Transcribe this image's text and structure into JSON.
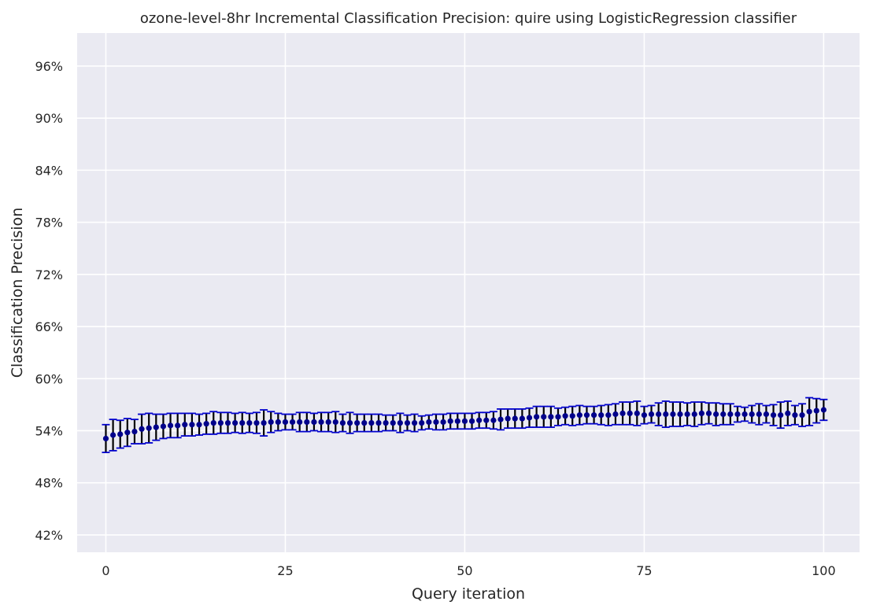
{
  "chart_data": {
    "type": "scatter",
    "title": "ozone-level-8hr Incremental Classification Precision: quire using LogisticRegression classifier",
    "xlabel": "Query iteration",
    "ylabel": "Classification Precision",
    "xlim": [
      -4,
      105
    ],
    "ylim": [
      40.0,
      99.8
    ],
    "xticks": [
      0,
      25,
      50,
      75,
      100
    ],
    "xtick_labels": [
      "0",
      "25",
      "50",
      "75",
      "100"
    ],
    "yticks": [
      42,
      48,
      54,
      60,
      66,
      72,
      78,
      84,
      90,
      96
    ],
    "ytick_labels": [
      "42%",
      "48%",
      "54%",
      "60%",
      "66%",
      "72%",
      "78%",
      "84%",
      "90%",
      "96%"
    ],
    "grid": true,
    "background": "#eaeaf2",
    "grid_color": "#ffffff",
    "point_color": "#00008b",
    "errorbar_color": "#000000",
    "cap_color": "#0000cd",
    "series": [
      {
        "x": [
          0,
          1,
          2,
          3,
          4,
          5,
          6,
          7,
          8,
          9,
          10,
          11,
          12,
          13,
          14,
          15,
          16,
          17,
          18,
          19,
          20,
          21,
          22,
          23,
          24,
          25,
          26,
          27,
          28,
          29,
          30,
          31,
          32,
          33,
          34,
          35,
          36,
          37,
          38,
          39,
          40,
          41,
          42,
          43,
          44,
          45,
          46,
          47,
          48,
          49,
          50,
          51,
          52,
          53,
          54,
          55,
          56,
          57,
          58,
          59,
          60,
          61,
          62,
          63,
          64,
          65,
          66,
          67,
          68,
          69,
          70,
          71,
          72,
          73,
          74,
          75,
          76,
          77,
          78,
          79,
          80,
          81,
          82,
          83,
          84,
          85,
          86,
          87,
          88,
          89,
          90,
          91,
          92,
          93,
          94,
          95,
          96,
          97,
          98,
          99,
          100
        ],
        "y": [
          53.1,
          53.5,
          53.6,
          53.8,
          53.9,
          54.2,
          54.3,
          54.4,
          54.5,
          54.6,
          54.6,
          54.7,
          54.7,
          54.7,
          54.8,
          54.9,
          54.9,
          54.9,
          54.9,
          54.9,
          54.9,
          54.9,
          54.9,
          55.0,
          55.0,
          55.0,
          55.0,
          55.0,
          55.0,
          55.0,
          55.0,
          55.0,
          55.0,
          54.9,
          54.9,
          54.9,
          54.9,
          54.9,
          54.9,
          54.9,
          54.9,
          54.9,
          54.9,
          54.9,
          54.9,
          55.0,
          55.0,
          55.0,
          55.1,
          55.1,
          55.1,
          55.1,
          55.2,
          55.2,
          55.2,
          55.3,
          55.4,
          55.4,
          55.4,
          55.5,
          55.6,
          55.6,
          55.6,
          55.6,
          55.7,
          55.7,
          55.8,
          55.8,
          55.8,
          55.8,
          55.8,
          55.9,
          56.0,
          56.0,
          56.0,
          55.8,
          55.9,
          55.9,
          55.9,
          55.9,
          55.9,
          55.9,
          55.9,
          56.0,
          56.0,
          55.9,
          55.9,
          55.9,
          55.9,
          55.9,
          55.9,
          55.9,
          55.9,
          55.8,
          55.8,
          56.0,
          55.8,
          55.8,
          56.2,
          56.3,
          56.4
        ],
        "err": [
          1.6,
          1.8,
          1.6,
          1.6,
          1.4,
          1.7,
          1.7,
          1.5,
          1.4,
          1.4,
          1.4,
          1.3,
          1.3,
          1.2,
          1.2,
          1.3,
          1.2,
          1.2,
          1.1,
          1.2,
          1.1,
          1.2,
          1.5,
          1.2,
          1.0,
          0.9,
          0.9,
          1.1,
          1.1,
          1.0,
          1.1,
          1.1,
          1.2,
          1.0,
          1.2,
          1.0,
          1.0,
          1.0,
          1.0,
          0.9,
          0.9,
          1.1,
          0.9,
          1.0,
          0.8,
          0.8,
          0.9,
          0.9,
          0.9,
          0.9,
          0.9,
          0.9,
          0.9,
          0.9,
          1.0,
          1.2,
          1.1,
          1.1,
          1.1,
          1.1,
          1.2,
          1.2,
          1.2,
          1.0,
          1.0,
          1.1,
          1.1,
          1.0,
          1.0,
          1.1,
          1.2,
          1.2,
          1.3,
          1.3,
          1.4,
          1.0,
          1.0,
          1.3,
          1.5,
          1.4,
          1.4,
          1.3,
          1.4,
          1.3,
          1.2,
          1.3,
          1.2,
          1.2,
          0.9,
          0.8,
          1.0,
          1.2,
          1.0,
          1.2,
          1.5,
          1.4,
          1.1,
          1.3,
          1.6,
          1.4,
          1.2
        ]
      }
    ]
  }
}
